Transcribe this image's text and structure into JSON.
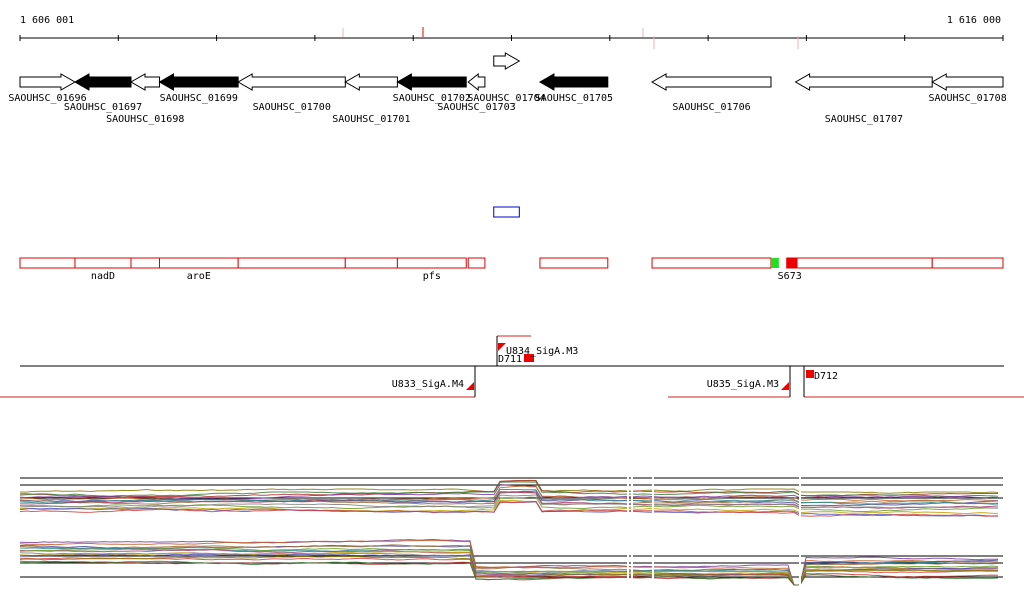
{
  "ruler": {
    "start_label": "1 606 001",
    "end_label": "1 616 000",
    "start_bp": 1606001,
    "end_bp": 1616000
  },
  "genes": [
    {
      "id": "SAOUHSC_01696",
      "start": 1606001,
      "end": 1606560,
      "strand": "+",
      "fill": "white",
      "label_row": 0
    },
    {
      "id": "SAOUHSC_01697",
      "start": 1606560,
      "end": 1607130,
      "strand": "-",
      "fill": "black",
      "label_row": 1
    },
    {
      "id": "SAOUHSC_01698",
      "start": 1607130,
      "end": 1607420,
      "strand": "-",
      "fill": "white",
      "label_row": 2
    },
    {
      "id": "SAOUHSC_01699",
      "start": 1607420,
      "end": 1608220,
      "strand": "-",
      "fill": "black",
      "label_row": 0
    },
    {
      "id": "SAOUHSC_01700",
      "start": 1608220,
      "end": 1609310,
      "strand": "-",
      "fill": "white",
      "label_row": 1
    },
    {
      "id": "SAOUHSC_01701",
      "start": 1609310,
      "end": 1609840,
      "strand": "-",
      "fill": "white",
      "label_row": 2
    },
    {
      "id": "SAOUHSC_01702",
      "start": 1609840,
      "end": 1610540,
      "strand": "-",
      "fill": "black",
      "label_row": 0
    },
    {
      "id": "SAOUHSC_01703",
      "start": 1610560,
      "end": 1610730,
      "strand": "-",
      "fill": "white",
      "label_row": 1
    },
    {
      "id": "SAOUHSC_01704",
      "start": 1610820,
      "end": 1611080,
      "strand": "+",
      "fill": "white",
      "label_row": 0
    },
    {
      "id": "SAOUHSC_01705",
      "start": 1611290,
      "end": 1611980,
      "strand": "-",
      "fill": "black",
      "label_row": 0
    },
    {
      "id": "SAOUHSC_01706",
      "start": 1612430,
      "end": 1613640,
      "strand": "-",
      "fill": "white",
      "label_row": 1
    },
    {
      "id": "SAOUHSC_01707",
      "start": 1613890,
      "end": 1615280,
      "strand": "-",
      "fill": "white",
      "label_row": 2
    },
    {
      "id": "SAOUHSC_01708",
      "start": 1615280,
      "end": 1616000,
      "strand": "-",
      "fill": "white",
      "label_row": 0
    }
  ],
  "operons": [
    {
      "start": 1606001,
      "end": 1606560,
      "label": ""
    },
    {
      "start": 1606560,
      "end": 1607130,
      "label": "nadD"
    },
    {
      "start": 1607130,
      "end": 1607420,
      "label": ""
    },
    {
      "start": 1607420,
      "end": 1608220,
      "label": "aroE"
    },
    {
      "start": 1608220,
      "end": 1609310,
      "label": ""
    },
    {
      "start": 1609310,
      "end": 1609840,
      "label": ""
    },
    {
      "start": 1609840,
      "end": 1610540,
      "label": "pfs"
    },
    {
      "start": 1610560,
      "end": 1610730,
      "label": ""
    },
    {
      "start": 1611290,
      "end": 1611980,
      "label": ""
    },
    {
      "start": 1612430,
      "end": 1613640,
      "label": ""
    },
    {
      "start": 1613800,
      "end": 1615280,
      "label": "S673"
    },
    {
      "start": 1615280,
      "end": 1616000,
      "label": ""
    }
  ],
  "blue_feature": {
    "start": 1610820,
    "end": 1611080
  },
  "green_mark": {
    "start": 1613640,
    "end": 1613720
  },
  "red_mark": {
    "start": 1613800,
    "end": 1613910
  },
  "transcripts": [
    {
      "label": "U834_SigA.M3",
      "pos": 1610790
    },
    {
      "label": "D711",
      "pos": 1611090
    },
    {
      "label": "U833_SigA.M4",
      "pos": 1610560
    },
    {
      "label": "U835_SigA.M3",
      "pos": 1613700
    },
    {
      "label": "D712",
      "pos": 1613850
    }
  ],
  "colors": {
    "operon_outline": "#dd0000",
    "green_mark": "#22dd22",
    "red_mark": "#ee0000",
    "blue_feature": "#0000cc",
    "ruler": "#000000"
  }
}
